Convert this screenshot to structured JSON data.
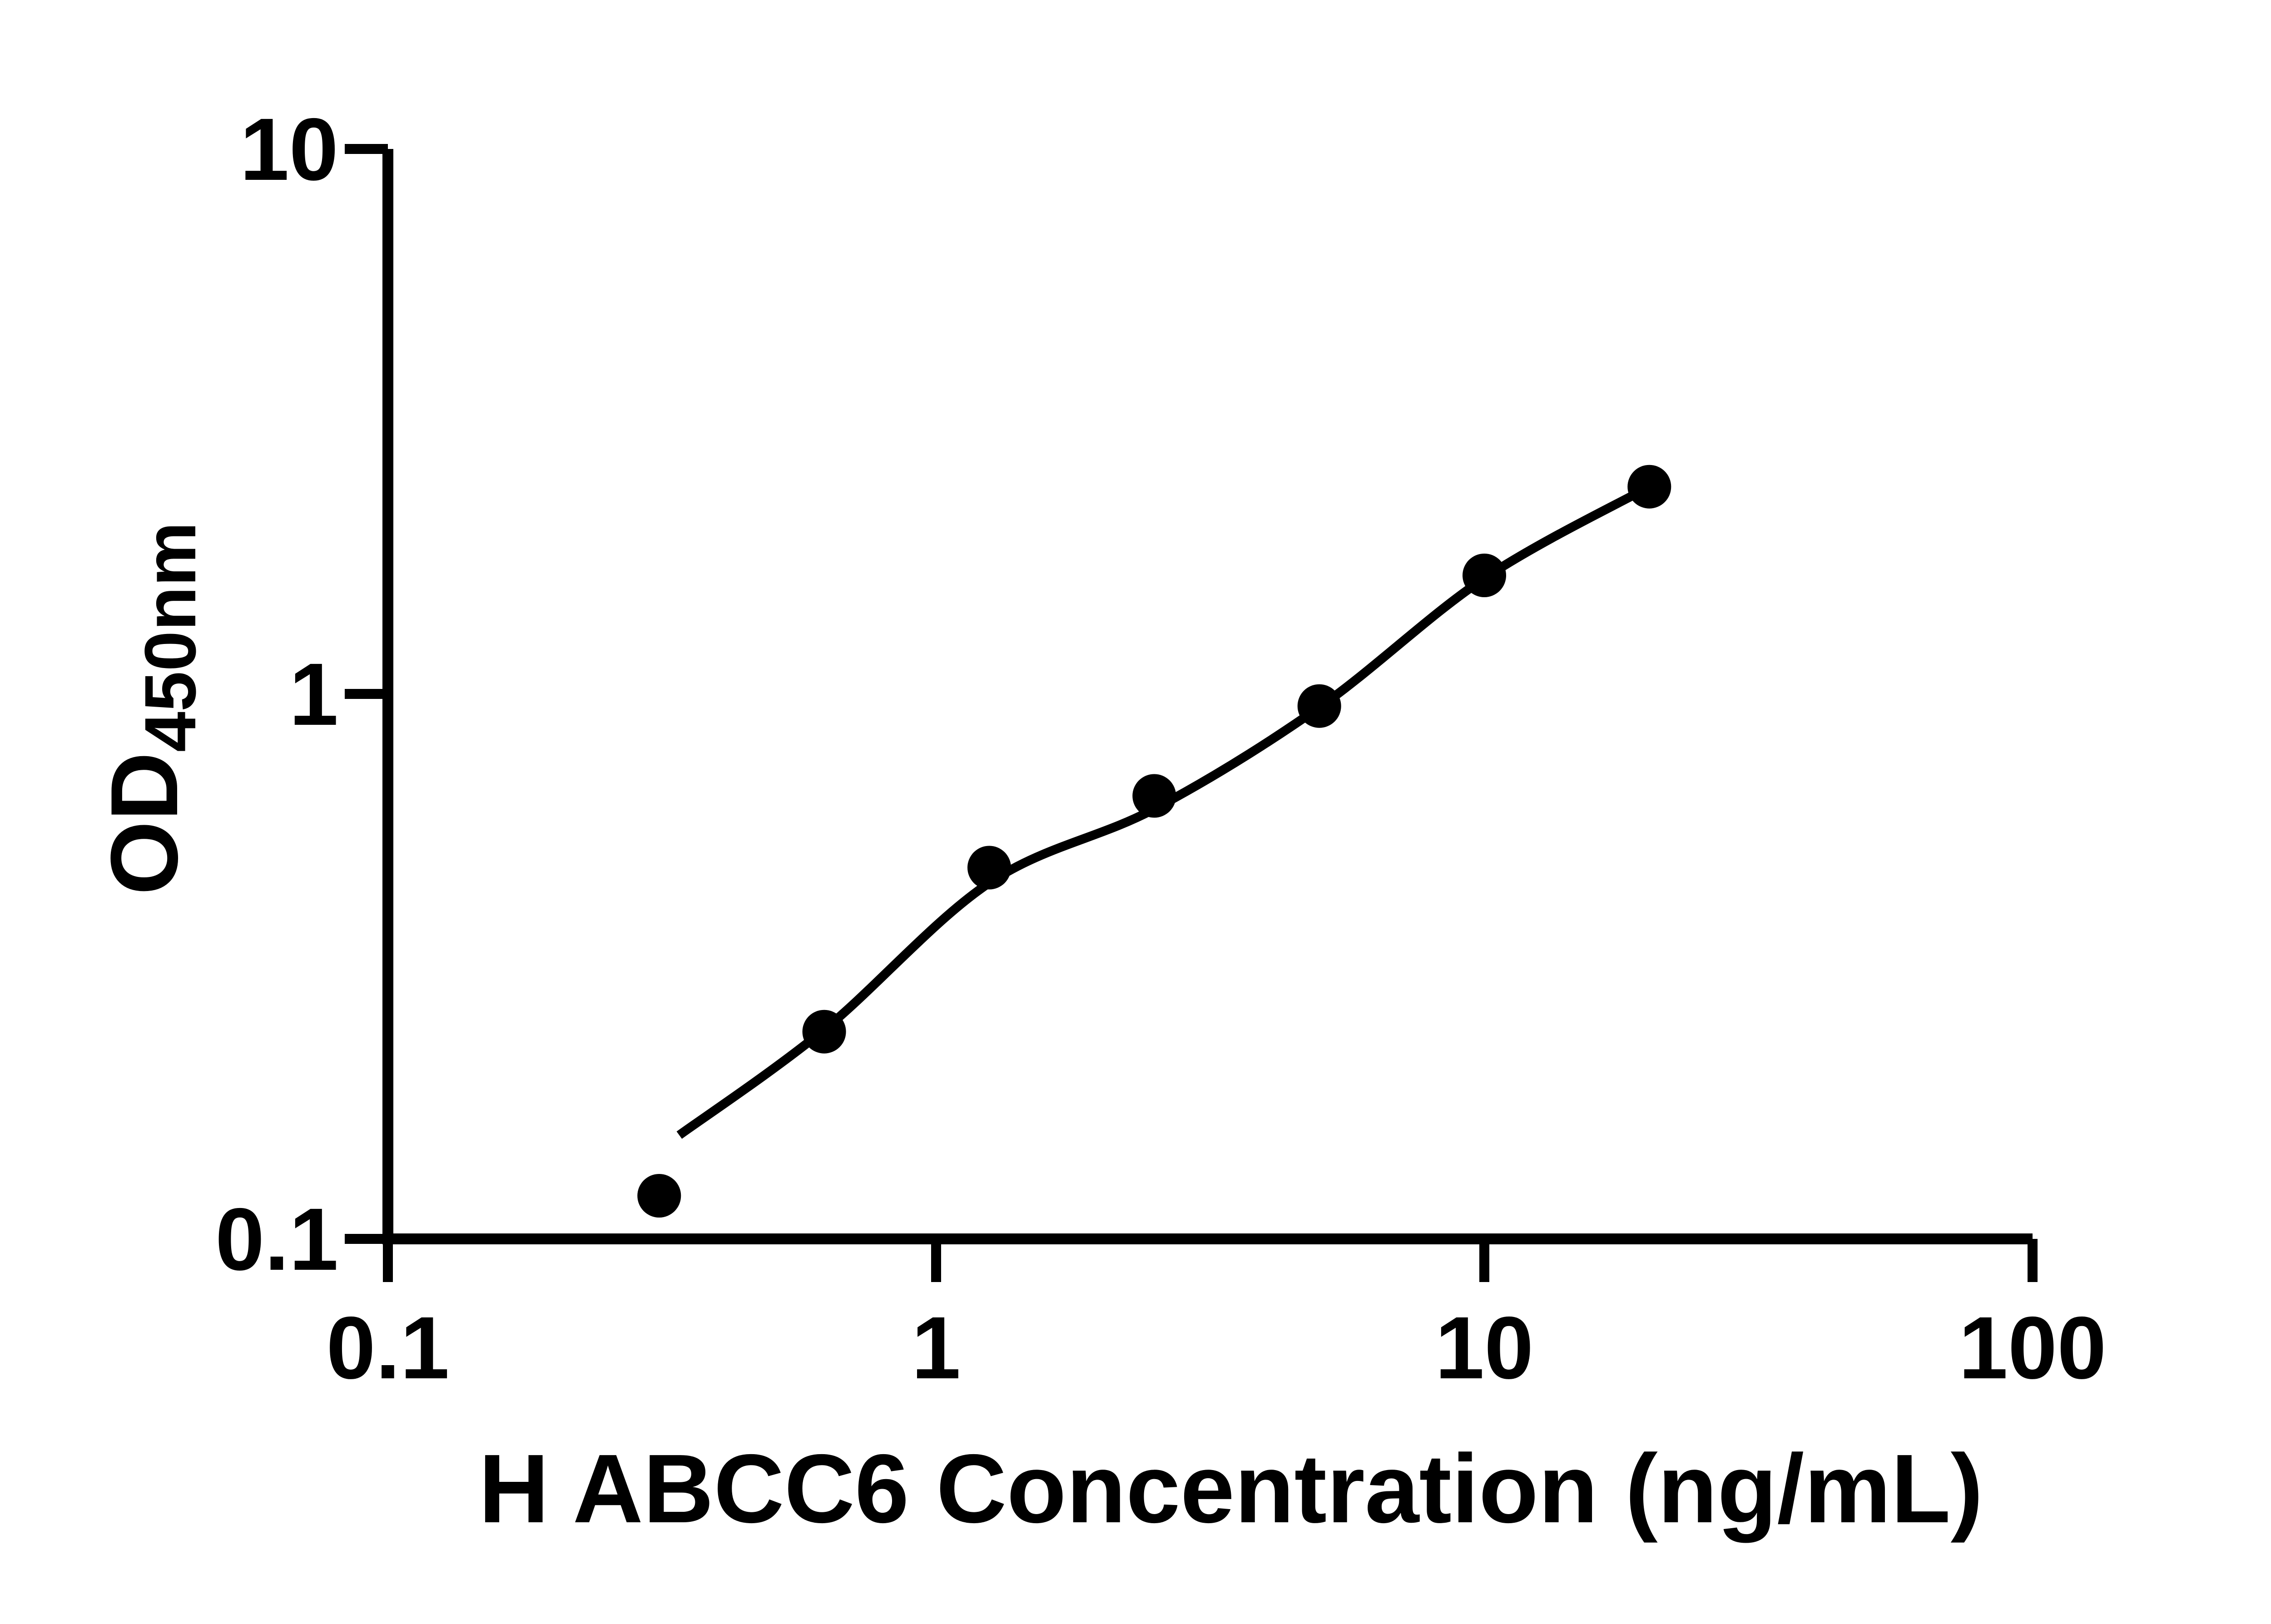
{
  "figure": {
    "background_color": "#ffffff",
    "foreground_color": "#000000"
  },
  "chart_data": {
    "type": "scatter",
    "xlabel": "H ABCC6 Concentration (ng/mL)",
    "ylabel": "OD",
    "ylabel_subscript": "450nm",
    "x_scale": "log10",
    "y_scale": "log10",
    "xlim": [
      0.1,
      100
    ],
    "ylim": [
      0.1,
      10
    ],
    "grid": false,
    "legend": false,
    "axis_color": "#000000",
    "marker_color": "#000000",
    "line_color": "#000000",
    "x_ticks": [
      {
        "value": 0.1,
        "label": "0.1"
      },
      {
        "value": 1,
        "label": "1"
      },
      {
        "value": 10,
        "label": "10"
      },
      {
        "value": 100,
        "label": "100"
      }
    ],
    "y_ticks": [
      {
        "value": 0.1,
        "label": "0.1"
      },
      {
        "value": 1,
        "label": "1"
      },
      {
        "value": 10,
        "label": "10"
      }
    ],
    "series": [
      {
        "marker": "filled-circle",
        "points": [
          {
            "x": 0.3125,
            "y": 0.12
          },
          {
            "x": 0.625,
            "y": 0.24
          },
          {
            "x": 1.25,
            "y": 0.48
          },
          {
            "x": 2.5,
            "y": 0.65
          },
          {
            "x": 5,
            "y": 0.95
          },
          {
            "x": 10,
            "y": 1.65
          },
          {
            "x": 20,
            "y": 2.4
          }
        ]
      }
    ],
    "fit_curve_points": [
      {
        "x": 0.34,
        "y": 0.155
      },
      {
        "x": 0.625,
        "y": 0.242
      },
      {
        "x": 1.25,
        "y": 0.45
      },
      {
        "x": 2.5,
        "y": 0.615
      },
      {
        "x": 5,
        "y": 0.945
      },
      {
        "x": 10,
        "y": 1.63
      },
      {
        "x": 20,
        "y": 2.4
      }
    ]
  }
}
